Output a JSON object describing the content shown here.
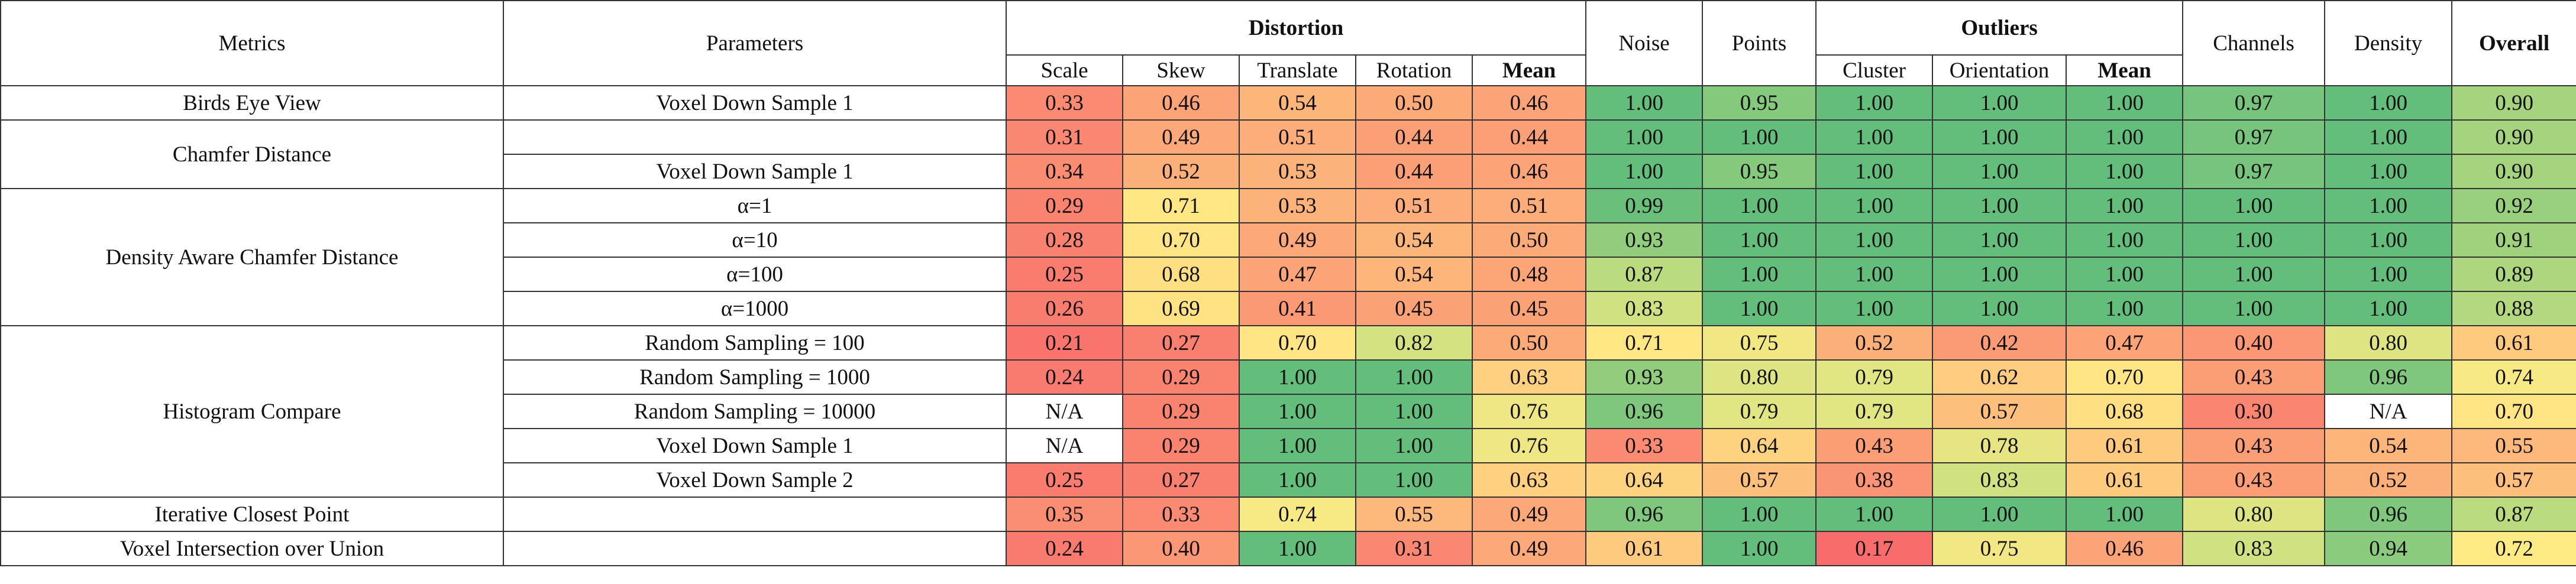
{
  "headers": {
    "metrics": "Metrics",
    "parameters": "Parameters",
    "distortion": "Distortion",
    "noise": "Noise",
    "points": "Points",
    "outliers": "Outliers",
    "channels": "Channels",
    "density": "Density",
    "overall": "Overall",
    "distortion_sub": [
      "Scale",
      "Skew",
      "Translate",
      "Rotation",
      "Mean"
    ],
    "outliers_sub": [
      "Cluster",
      "Orientation",
      "Mean"
    ]
  },
  "groups": [
    {
      "metric": "Birds Eye View",
      "rows": [
        {
          "param": "Voxel Down Sample 1",
          "values": [
            "0.33",
            "0.46",
            "0.54",
            "0.50",
            "0.46",
            "1.00",
            "0.95",
            "1.00",
            "1.00",
            "1.00",
            "0.97",
            "1.00",
            "0.90"
          ]
        }
      ]
    },
    {
      "metric": "Chamfer Distance",
      "rows": [
        {
          "param": "",
          "values": [
            "0.31",
            "0.49",
            "0.51",
            "0.44",
            "0.44",
            "1.00",
            "1.00",
            "1.00",
            "1.00",
            "1.00",
            "0.97",
            "1.00",
            "0.90"
          ]
        },
        {
          "param": "Voxel Down Sample 1",
          "values": [
            "0.34",
            "0.52",
            "0.53",
            "0.44",
            "0.46",
            "1.00",
            "0.95",
            "1.00",
            "1.00",
            "1.00",
            "0.97",
            "1.00",
            "0.90"
          ]
        }
      ]
    },
    {
      "metric": "Density Aware Chamfer Distance",
      "rows": [
        {
          "param": "α=1",
          "values": [
            "0.29",
            "0.71",
            "0.53",
            "0.51",
            "0.51",
            "0.99",
            "1.00",
            "1.00",
            "1.00",
            "1.00",
            "1.00",
            "1.00",
            "0.92"
          ]
        },
        {
          "param": "α=10",
          "values": [
            "0.28",
            "0.70",
            "0.49",
            "0.54",
            "0.50",
            "0.93",
            "1.00",
            "1.00",
            "1.00",
            "1.00",
            "1.00",
            "1.00",
            "0.91"
          ]
        },
        {
          "param": "α=100",
          "values": [
            "0.25",
            "0.68",
            "0.47",
            "0.54",
            "0.48",
            "0.87",
            "1.00",
            "1.00",
            "1.00",
            "1.00",
            "1.00",
            "1.00",
            "0.89"
          ]
        },
        {
          "param": "α=1000",
          "values": [
            "0.26",
            "0.69",
            "0.41",
            "0.45",
            "0.45",
            "0.83",
            "1.00",
            "1.00",
            "1.00",
            "1.00",
            "1.00",
            "1.00",
            "0.88"
          ]
        }
      ]
    },
    {
      "metric": "Histogram Compare",
      "rows": [
        {
          "param": "Random Sampling = 100",
          "values": [
            "0.21",
            "0.27",
            "0.70",
            "0.82",
            "0.50",
            "0.71",
            "0.75",
            "0.52",
            "0.42",
            "0.47",
            "0.40",
            "0.80",
            "0.61"
          ]
        },
        {
          "param": "Random Sampling = 1000",
          "values": [
            "0.24",
            "0.29",
            "1.00",
            "1.00",
            "0.63",
            "0.93",
            "0.80",
            "0.79",
            "0.62",
            "0.70",
            "0.43",
            "0.96",
            "0.74"
          ]
        },
        {
          "param": "Random Sampling = 10000",
          "values": [
            "N/A",
            "0.29",
            "1.00",
            "1.00",
            "0.76",
            "0.96",
            "0.79",
            "0.79",
            "0.57",
            "0.68",
            "0.30",
            "N/A",
            "0.70"
          ]
        },
        {
          "param": "Voxel Down Sample 1",
          "values": [
            "N/A",
            "0.29",
            "1.00",
            "1.00",
            "0.76",
            "0.33",
            "0.64",
            "0.43",
            "0.78",
            "0.61",
            "0.43",
            "0.54",
            "0.55"
          ]
        },
        {
          "param": "Voxel Down Sample 2",
          "values": [
            "0.25",
            "0.27",
            "1.00",
            "1.00",
            "0.63",
            "0.64",
            "0.57",
            "0.38",
            "0.83",
            "0.61",
            "0.43",
            "0.52",
            "0.57"
          ]
        }
      ]
    },
    {
      "metric": "Iterative Closest Point",
      "rows": [
        {
          "param": "",
          "values": [
            "0.35",
            "0.33",
            "0.74",
            "0.55",
            "0.49",
            "0.96",
            "1.00",
            "1.00",
            "1.00",
            "1.00",
            "0.80",
            "0.96",
            "0.87"
          ]
        }
      ]
    },
    {
      "metric": "Voxel Intersection over Union",
      "rows": [
        {
          "param": "",
          "values": [
            "0.24",
            "0.40",
            "1.00",
            "0.31",
            "0.49",
            "0.61",
            "1.00",
            "0.17",
            "0.75",
            "0.46",
            "0.83",
            "0.94",
            "0.72"
          ]
        }
      ]
    }
  ]
}
